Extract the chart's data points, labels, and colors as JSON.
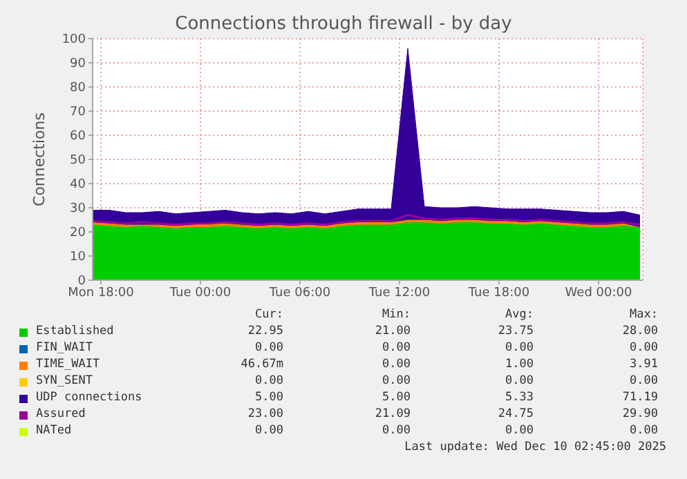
{
  "chart_data": {
    "type": "area",
    "stacked": true,
    "title": "Connections through firewall - by day",
    "ylabel": "Connections",
    "x": [
      "2025-12-08T17:30",
      "2025-12-08T18:30",
      "2025-12-08T19:30",
      "2025-12-08T20:30",
      "2025-12-08T21:30",
      "2025-12-08T22:30",
      "2025-12-08T23:30",
      "2025-12-09T00:30",
      "2025-12-09T01:30",
      "2025-12-09T02:30",
      "2025-12-09T03:30",
      "2025-12-09T04:30",
      "2025-12-09T05:30",
      "2025-12-09T06:30",
      "2025-12-09T07:30",
      "2025-12-09T08:30",
      "2025-12-09T09:30",
      "2025-12-09T10:30",
      "2025-12-09T11:30",
      "2025-12-09T12:30",
      "2025-12-09T13:30",
      "2025-12-09T14:30",
      "2025-12-09T15:30",
      "2025-12-09T16:30",
      "2025-12-09T17:30",
      "2025-12-09T18:30",
      "2025-12-09T19:30",
      "2025-12-09T20:30",
      "2025-12-09T21:30",
      "2025-12-09T22:30",
      "2025-12-09T23:30",
      "2025-12-10T00:30",
      "2025-12-10T01:30",
      "2025-12-10T02:30"
    ],
    "xlim": [
      "2025-12-08T17:30",
      "2025-12-10T02:40"
    ],
    "xticks": [
      {
        "value": "2025-12-08T18:00",
        "label": "Mon 18:00"
      },
      {
        "value": "2025-12-09T00:00",
        "label": "Tue 00:00"
      },
      {
        "value": "2025-12-09T06:00",
        "label": "Tue 06:00"
      },
      {
        "value": "2025-12-09T12:00",
        "label": "Tue 12:00"
      },
      {
        "value": "2025-12-09T18:00",
        "label": "Tue 18:00"
      },
      {
        "value": "2025-12-10T00:00",
        "label": "Wed 00:00"
      }
    ],
    "ylim": [
      0,
      100
    ],
    "yticks": [
      0,
      10,
      20,
      30,
      40,
      50,
      60,
      70,
      80,
      90,
      100
    ],
    "grid": true,
    "legend": "bottom",
    "series": [
      {
        "name": "Established",
        "color": "#00cc00",
        "values": [
          23,
          22.5,
          22,
          22.5,
          22,
          21.5,
          22,
          22,
          22.5,
          22,
          21.5,
          22,
          21.5,
          22,
          21.5,
          22.5,
          23,
          23,
          23,
          24,
          24,
          23.5,
          24,
          24,
          23.5,
          23.5,
          23,
          23.5,
          23,
          22.5,
          22,
          22,
          22.5,
          22
        ]
      },
      {
        "name": "FIN_WAIT",
        "color": "#0066b3",
        "values": [
          null,
          null,
          null,
          null,
          null,
          null,
          null,
          null,
          null,
          null,
          null,
          null,
          null,
          null,
          null,
          null,
          null,
          null,
          null,
          null,
          null,
          null,
          null,
          null,
          null,
          null,
          null,
          null,
          null,
          null,
          null,
          null,
          null,
          null
        ]
      },
      {
        "name": "TIME_WAIT",
        "color": "#ff8000",
        "values": [
          1,
          1,
          1,
          0.5,
          1,
          1,
          1,
          1.5,
          1,
          1,
          1,
          1,
          1,
          1,
          1,
          1,
          1,
          1,
          1,
          1,
          1,
          1,
          1,
          1,
          1,
          1,
          1,
          1,
          1,
          1,
          1,
          1,
          1,
          0
        ]
      },
      {
        "name": "SYN_SENT",
        "color": "#ffcc00",
        "values": [
          null,
          null,
          null,
          null,
          null,
          null,
          null,
          null,
          null,
          null,
          null,
          null,
          null,
          null,
          null,
          null,
          null,
          null,
          null,
          null,
          null,
          null,
          null,
          null,
          null,
          null,
          null,
          null,
          null,
          null,
          null,
          null,
          null,
          null
        ]
      },
      {
        "name": "UDP connections",
        "color": "#330099",
        "values": [
          5,
          5.5,
          5,
          5,
          5.5,
          5,
          5,
          5,
          5.5,
          5,
          5,
          5,
          5,
          5.5,
          5,
          5,
          5.5,
          5.5,
          5.5,
          71,
          5.5,
          5.5,
          5,
          5.5,
          5.5,
          5,
          5.5,
          5,
          5,
          5,
          5,
          5,
          5,
          5
        ]
      },
      {
        "name": "Assured",
        "color": "#990099",
        "type": "line",
        "values": [
          24.5,
          24,
          23.5,
          24,
          23.5,
          23,
          23.5,
          23.5,
          24,
          23.5,
          23,
          23.5,
          23,
          23.5,
          23,
          24,
          24.5,
          24.5,
          24.5,
          27,
          25.5,
          25,
          25.5,
          25.5,
          25,
          25,
          24.5,
          25,
          24.5,
          24,
          23.5,
          23.5,
          24,
          23
        ]
      },
      {
        "name": "NATed",
        "color": "#ccff00",
        "type": "line",
        "values": [
          null,
          null,
          null,
          null,
          null,
          null,
          null,
          null,
          null,
          null,
          null,
          null,
          null,
          null,
          null,
          null,
          null,
          null,
          null,
          null,
          null,
          null,
          null,
          null,
          null,
          null,
          null,
          null,
          null,
          null,
          null,
          null,
          null,
          null
        ]
      }
    ],
    "annotations": [
      "Cur:",
      "Min:",
      "Avg:",
      "Max:",
      "22.95",
      "21.00",
      "23.75",
      "28.00",
      "0.00",
      "0.00",
      "0.00",
      "0.00",
      "46.67m",
      "0.00",
      "1.00",
      "3.91",
      "0.00",
      "0.00",
      "0.00",
      "0.00",
      "5.00",
      "5.00",
      "5.33",
      "71.19",
      "23.00",
      "21.09",
      "24.75",
      "29.90",
      "0.00",
      "0.00",
      "0.00",
      "0.00",
      "Last update: Wed Dec 10 02:45:00 2025"
    ]
  }
}
